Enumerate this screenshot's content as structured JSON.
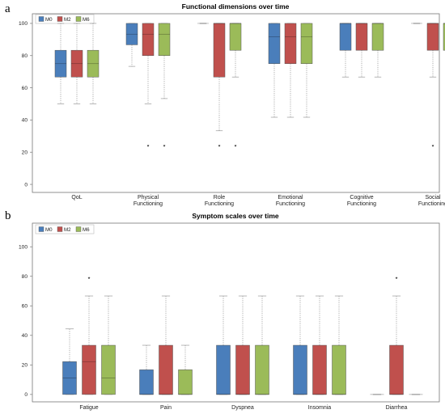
{
  "panel_letters": [
    "a",
    "b"
  ],
  "colors": {
    "M0": "#4a7ebb",
    "M2": "#c0504d",
    "M6": "#9bbb59",
    "whisker": "#9a9a9a",
    "frame": "#777777"
  },
  "chart_data": [
    {
      "type": "box",
      "title": "Functional dimensions over time",
      "xlabel": "",
      "ylabel": "",
      "ylim": [
        -5,
        106
      ],
      "yticks": [
        0,
        20,
        40,
        60,
        80,
        100
      ],
      "grid": false,
      "legend_position": "top-left",
      "series_names": [
        "M0",
        "M2",
        "M6"
      ],
      "categories": [
        {
          "label": [
            "QoL"
          ],
          "boxes": [
            {
              "series": "M0",
              "min": 50,
              "q1": 66.7,
              "median": 75,
              "q3": 83.3,
              "max": 100,
              "outliers": []
            },
            {
              "series": "M2",
              "min": 50,
              "q1": 66.7,
              "median": 75,
              "q3": 83.3,
              "max": 100,
              "outliers": []
            },
            {
              "series": "M6",
              "min": 50,
              "q1": 66.7,
              "median": 75,
              "q3": 83.3,
              "max": 100,
              "outliers": []
            }
          ]
        },
        {
          "label": [
            "Physical",
            "Functioning"
          ],
          "boxes": [
            {
              "series": "M0",
              "min": 73.3,
              "q1": 86.7,
              "median": 93.3,
              "q3": 100,
              "max": 100,
              "outliers": []
            },
            {
              "series": "M2",
              "min": 50,
              "q1": 80,
              "median": 93.3,
              "q3": 100,
              "max": 100,
              "outliers": [
                25
              ]
            },
            {
              "series": "M6",
              "min": 53.3,
              "q1": 80,
              "median": 93.3,
              "q3": 100,
              "max": 100,
              "outliers": [
                25
              ]
            }
          ]
        },
        {
          "label": [
            "Role",
            "Functioning"
          ],
          "boxes": [
            {
              "series": "M0",
              "min": 100,
              "q1": 100,
              "median": 100,
              "q3": 100,
              "max": 100,
              "outliers": []
            },
            {
              "series": "M2",
              "min": 33.3,
              "q1": 66.7,
              "median": 100,
              "q3": 100,
              "max": 100,
              "outliers": [
                25
              ]
            },
            {
              "series": "M6",
              "min": 66.7,
              "q1": 83.3,
              "median": 100,
              "q3": 100,
              "max": 100,
              "outliers": [
                25
              ]
            }
          ]
        },
        {
          "label": [
            "Emotional",
            "Functioning"
          ],
          "boxes": [
            {
              "series": "M0",
              "min": 41.7,
              "q1": 75,
              "median": 91.7,
              "q3": 100,
              "max": 100,
              "outliers": []
            },
            {
              "series": "M2",
              "min": 41.7,
              "q1": 75,
              "median": 91.7,
              "q3": 100,
              "max": 100,
              "outliers": []
            },
            {
              "series": "M6",
              "min": 41.7,
              "q1": 75,
              "median": 91.7,
              "q3": 100,
              "max": 100,
              "outliers": []
            }
          ]
        },
        {
          "label": [
            "Cognitive",
            "Functioning"
          ],
          "boxes": [
            {
              "series": "M0",
              "min": 66.7,
              "q1": 83.3,
              "median": 100,
              "q3": 100,
              "max": 100,
              "outliers": []
            },
            {
              "series": "M2",
              "min": 66.7,
              "q1": 83.3,
              "median": 100,
              "q3": 100,
              "max": 100,
              "outliers": []
            },
            {
              "series": "M6",
              "min": 66.7,
              "q1": 83.3,
              "median": 100,
              "q3": 100,
              "max": 100,
              "outliers": []
            }
          ]
        },
        {
          "label": [
            "Social",
            "Functioning"
          ],
          "boxes": [
            {
              "series": "M0",
              "min": 100,
              "q1": 100,
              "median": 100,
              "q3": 100,
              "max": 100,
              "outliers": []
            },
            {
              "series": "M2",
              "min": 66.7,
              "q1": 83.3,
              "median": 100,
              "q3": 100,
              "max": 100,
              "outliers": [
                25
              ]
            },
            {
              "series": "M6",
              "min": 66.7,
              "q1": 83.3,
              "median": 100,
              "q3": 100,
              "max": 100,
              "outliers": []
            }
          ]
        }
      ]
    },
    {
      "type": "box",
      "title": "Symptom scales over time",
      "xlabel": "",
      "ylabel": "",
      "ylim": [
        -5,
        116
      ],
      "yticks": [
        0,
        20,
        40,
        60,
        80,
        100
      ],
      "grid": false,
      "legend_position": "top-left",
      "series_names": [
        "M0",
        "M2",
        "M6"
      ],
      "categories": [
        {
          "label": [
            "Fatigue"
          ],
          "boxes": [
            {
              "series": "M0",
              "min": 0,
              "q1": 0,
              "median": 11.1,
              "q3": 22.2,
              "max": 44.4,
              "outliers": []
            },
            {
              "series": "M2",
              "min": 0,
              "q1": 0,
              "median": 22.2,
              "q3": 33.3,
              "max": 66.7,
              "outliers": [
                80
              ]
            },
            {
              "series": "M6",
              "min": 0,
              "q1": 0,
              "median": 11.1,
              "q3": 33.3,
              "max": 66.7,
              "outliers": []
            }
          ]
        },
        {
          "label": [
            "Pain"
          ],
          "boxes": [
            {
              "series": "M0",
              "min": 0,
              "q1": 0,
              "median": 0,
              "q3": 16.7,
              "max": 33.3,
              "outliers": []
            },
            {
              "series": "M2",
              "min": 0,
              "q1": 0,
              "median": 0,
              "q3": 33.3,
              "max": 66.7,
              "outliers": []
            },
            {
              "series": "M6",
              "min": 0,
              "q1": 0,
              "median": 0,
              "q3": 16.7,
              "max": 33.3,
              "outliers": []
            }
          ]
        },
        {
          "label": [
            "Dyspnea"
          ],
          "boxes": [
            {
              "series": "M0",
              "min": 0,
              "q1": 0,
              "median": 0,
              "q3": 33.3,
              "max": 66.7,
              "outliers": []
            },
            {
              "series": "M2",
              "min": 0,
              "q1": 0,
              "median": 0,
              "q3": 33.3,
              "max": 66.7,
              "outliers": []
            },
            {
              "series": "M6",
              "min": 0,
              "q1": 0,
              "median": 0,
              "q3": 33.3,
              "max": 66.7,
              "outliers": []
            }
          ]
        },
        {
          "label": [
            "Insomnia"
          ],
          "boxes": [
            {
              "series": "M0",
              "min": 0,
              "q1": 0,
              "median": 0,
              "q3": 33.3,
              "max": 66.7,
              "outliers": []
            },
            {
              "series": "M2",
              "min": 0,
              "q1": 0,
              "median": 0,
              "q3": 33.3,
              "max": 66.7,
              "outliers": []
            },
            {
              "series": "M6",
              "min": 0,
              "q1": 0,
              "median": 0,
              "q3": 33.3,
              "max": 66.7,
              "outliers": []
            }
          ]
        },
        {
          "label": [
            "Diarrhea"
          ],
          "boxes": [
            {
              "series": "M0",
              "min": 0,
              "q1": 0,
              "median": 0,
              "q3": 0,
              "max": 0,
              "outliers": []
            },
            {
              "series": "M2",
              "min": 0,
              "q1": 0,
              "median": 0,
              "q3": 33.3,
              "max": 66.7,
              "outliers": [
                80
              ]
            },
            {
              "series": "M6",
              "min": 0,
              "q1": 0,
              "median": 0,
              "q3": 0,
              "max": 0,
              "outliers": []
            }
          ]
        }
      ]
    }
  ]
}
